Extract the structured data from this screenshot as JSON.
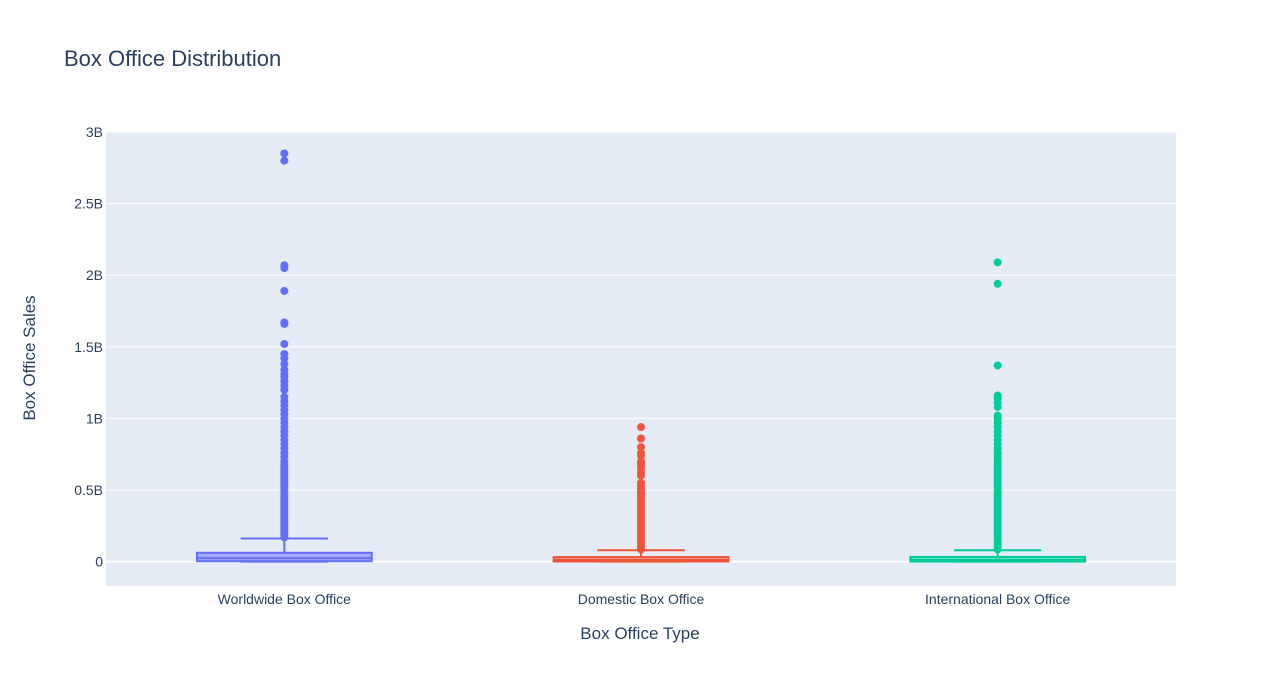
{
  "chart_data": {
    "type": "box",
    "title": "Box Office Distribution",
    "xlabel": "Box Office Type",
    "ylabel": "Box Office Sales",
    "ylim": [
      -170000000,
      3000000000
    ],
    "yticks": [
      0,
      500000000,
      1000000000,
      1500000000,
      2000000000,
      2500000000,
      3000000000
    ],
    "ytick_labels": [
      "0",
      "0.5B",
      "1B",
      "1.5B",
      "2B",
      "2.5B",
      "3B"
    ],
    "grid": true,
    "background_color": "#e5ecf6",
    "categories": [
      "Worldwide Box Office",
      "Domestic Box Office",
      "International Box Office"
    ],
    "series": [
      {
        "category": "Worldwide Box Office",
        "color": "#636efa",
        "min": 0,
        "q1": 3000000,
        "median": 25000000,
        "q3": 62000000,
        "upper_fence": 162000000,
        "outliers": [
          170000000,
          185000000,
          200000000,
          220000000,
          240000000,
          260000000,
          280000000,
          300000000,
          320000000,
          340000000,
          360000000,
          380000000,
          400000000,
          420000000,
          440000000,
          460000000,
          480000000,
          500000000,
          520000000,
          540000000,
          560000000,
          580000000,
          600000000,
          620000000,
          640000000,
          660000000,
          680000000,
          700000000,
          730000000,
          760000000,
          790000000,
          820000000,
          850000000,
          880000000,
          910000000,
          940000000,
          970000000,
          1000000000,
          1030000000,
          1060000000,
          1090000000,
          1120000000,
          1150000000,
          1200000000,
          1230000000,
          1260000000,
          1290000000,
          1310000000,
          1340000000,
          1380000000,
          1420000000,
          1450000000,
          1520000000,
          1660000000,
          1670000000,
          1890000000,
          2050000000,
          2070000000,
          2800000000,
          2850000000
        ]
      },
      {
        "category": "Domestic Box Office",
        "color": "#ef553b",
        "min": 0,
        "q1": 1000000,
        "median": 12000000,
        "q3": 32000000,
        "upper_fence": 80000000,
        "outliers": [
          85000000,
          95000000,
          110000000,
          130000000,
          150000000,
          170000000,
          190000000,
          210000000,
          230000000,
          250000000,
          270000000,
          290000000,
          310000000,
          330000000,
          350000000,
          370000000,
          390000000,
          410000000,
          430000000,
          450000000,
          470000000,
          490000000,
          510000000,
          530000000,
          550000000,
          600000000,
          620000000,
          650000000,
          670000000,
          690000000,
          700000000,
          740000000,
          760000000,
          800000000,
          860000000,
          940000000
        ]
      },
      {
        "category": "International Box Office",
        "color": "#00cc96",
        "min": 0,
        "q1": 500000,
        "median": 12000000,
        "q3": 33000000,
        "upper_fence": 80000000,
        "outliers": [
          85000000,
          100000000,
          120000000,
          140000000,
          160000000,
          180000000,
          200000000,
          220000000,
          240000000,
          260000000,
          280000000,
          300000000,
          320000000,
          340000000,
          360000000,
          380000000,
          400000000,
          420000000,
          440000000,
          460000000,
          480000000,
          500000000,
          520000000,
          540000000,
          560000000,
          580000000,
          600000000,
          620000000,
          640000000,
          660000000,
          680000000,
          700000000,
          720000000,
          740000000,
          760000000,
          790000000,
          820000000,
          850000000,
          880000000,
          910000000,
          940000000,
          970000000,
          1000000000,
          1020000000,
          1080000000,
          1110000000,
          1140000000,
          1160000000,
          1370000000,
          1940000000,
          2090000000
        ]
      }
    ]
  }
}
